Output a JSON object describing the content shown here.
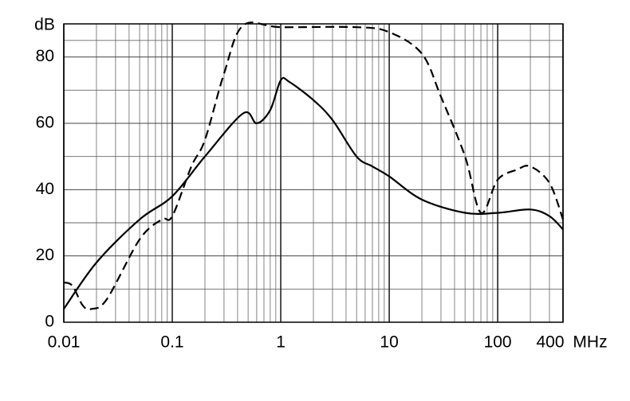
{
  "chart_data": {
    "type": "line",
    "x_label": "MHz",
    "y_label": "dB",
    "xlog": true,
    "xlim": [
      0.01,
      400
    ],
    "xticks": [
      0.01,
      0.1,
      1,
      10,
      100,
      400
    ],
    "ylim": [
      0,
      90
    ],
    "yticks": [
      0,
      20,
      40,
      60,
      80
    ],
    "grid": true,
    "series": [
      {
        "color": "#000000",
        "linestyle": "solid",
        "x": [
          0.01,
          0.02,
          0.05,
          0.1,
          0.2,
          0.45,
          0.6,
          0.8,
          1,
          1.2,
          2,
          3,
          5,
          7,
          10,
          20,
          50,
          100,
          200,
          300,
          400
        ],
        "values": [
          4,
          18,
          31,
          38,
          50,
          63,
          60,
          64,
          73,
          72.5,
          67,
          61,
          50,
          47,
          44,
          37,
          33,
          33,
          34,
          32,
          28
        ]
      },
      {
        "color": "#000000",
        "linestyle": "dashed",
        "x": [
          0.01,
          0.012,
          0.015,
          0.018,
          0.025,
          0.05,
          0.08,
          0.1,
          0.15,
          0.2,
          0.3,
          0.45,
          1,
          5,
          10,
          20,
          30,
          50,
          70,
          100,
          150,
          200,
          300,
          400
        ],
        "values": [
          12,
          11,
          5,
          4,
          7,
          25,
          31,
          32,
          47,
          55,
          75,
          89.5,
          89,
          89,
          87.5,
          81,
          68,
          50,
          33,
          43,
          46,
          47,
          42,
          31
        ]
      }
    ]
  }
}
